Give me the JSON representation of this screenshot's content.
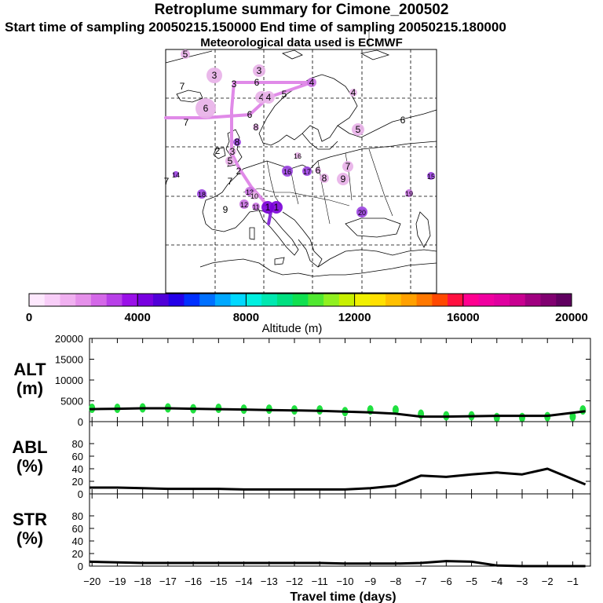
{
  "header": {
    "title": "Retroplume summary for Cimone_200502",
    "sampling": "Start time of sampling 20050215.150000     End time of sampling 20050215.180000",
    "met": "Meteorological data used is ECMWF"
  },
  "colorbar": {
    "ticks": [
      "0",
      "4000",
      "8000",
      "12000",
      "16000",
      "20000"
    ],
    "label": "Altitude  (m)",
    "colors": [
      "#fde8fd",
      "#f8cef8",
      "#f0b0f0",
      "#e590ea",
      "#d468e8",
      "#b840e8",
      "#9a10e8",
      "#7800e0",
      "#5000d8",
      "#2400e8",
      "#0030ff",
      "#0070ff",
      "#00a8ff",
      "#00d8ff",
      "#00f0e0",
      "#00e8b0",
      "#00e080",
      "#10e050",
      "#50e830",
      "#90f020",
      "#c8f000",
      "#f0f000",
      "#ffe000",
      "#ffc000",
      "#ffa000",
      "#ff7800",
      "#ff4800",
      "#ff1040",
      "#ff0090",
      "#f000a0",
      "#e000a0",
      "#c80090",
      "#a00080",
      "#800070",
      "#600060"
    ]
  },
  "map": {
    "labels": [
      {
        "t": "5",
        "x": 236,
        "y": 69,
        "c": "#e8b0e8",
        "r": 6
      },
      {
        "t": "3",
        "x": 273,
        "y": 96,
        "c": "#e8b0e8",
        "r": 10
      },
      {
        "t": "3",
        "x": 330,
        "y": 90,
        "c": "#e8b0e8",
        "r": 8
      },
      {
        "t": "7",
        "x": 232,
        "y": 110,
        "c": "#e8b0e8",
        "r": 0
      },
      {
        "t": "3",
        "x": 298,
        "y": 107,
        "c": "#e8b0e8",
        "r": 0
      },
      {
        "t": "6",
        "x": 327,
        "y": 105,
        "c": "#e8b0e8",
        "r": 0
      },
      {
        "t": "4",
        "x": 397,
        "y": 105,
        "c": "#c870e0",
        "r": 6
      },
      {
        "t": "4",
        "x": 450,
        "y": 118,
        "c": "#e8b0e8",
        "r": 5
      },
      {
        "t": "4",
        "x": 333,
        "y": 124,
        "c": "#e8b0e8",
        "r": 8
      },
      {
        "t": "4",
        "x": 342,
        "y": 124,
        "c": "#e8b0e8",
        "r": 8
      },
      {
        "t": "5",
        "x": 362,
        "y": 120,
        "c": "#e8b0e8",
        "r": 0
      },
      {
        "t": "6",
        "x": 262,
        "y": 138,
        "c": "#e8b0e8",
        "r": 13
      },
      {
        "t": "6",
        "x": 318,
        "y": 146,
        "c": "#e8b0e8",
        "r": 0
      },
      {
        "t": "7",
        "x": 237,
        "y": 156,
        "c": "#e8b0e8",
        "r": 0
      },
      {
        "t": "6",
        "x": 513,
        "y": 153,
        "c": "#e8b0e8",
        "r": 0
      },
      {
        "t": "5",
        "x": 456,
        "y": 165,
        "c": "#e8b0e8",
        "r": 8
      },
      {
        "t": "8",
        "x": 326,
        "y": 162,
        "c": "#e8b0e8",
        "r": 4
      },
      {
        "t": "8",
        "x": 302,
        "y": 181,
        "c": "#9a40e0",
        "r": 5
      },
      {
        "t": "2",
        "x": 277,
        "y": 192,
        "c": "#e8b0e8",
        "r": 0
      },
      {
        "t": "3",
        "x": 296,
        "y": 193,
        "c": "#e8b0e8",
        "r": 5
      },
      {
        "t": "5",
        "x": 293,
        "y": 205,
        "c": "#e8b0e8",
        "r": 6
      },
      {
        "t": "16",
        "x": 379,
        "y": 198,
        "c": "#e8b0e8",
        "r": 4
      },
      {
        "t": "7",
        "x": 443,
        "y": 212,
        "c": "#e8b0e8",
        "r": 7
      },
      {
        "t": "16",
        "x": 366,
        "y": 218,
        "c": "#9a40e0",
        "r": 7
      },
      {
        "t": "17",
        "x": 391,
        "y": 218,
        "c": "#9a40e0",
        "r": 6
      },
      {
        "t": "6",
        "x": 405,
        "y": 217,
        "c": "#e8b0e8",
        "r": 4
      },
      {
        "t": "2",
        "x": 304,
        "y": 218,
        "c": "#e8b0e8",
        "r": 0
      },
      {
        "t": "14",
        "x": 224,
        "y": 222,
        "c": "#9a40e0",
        "r": 4
      },
      {
        "t": "15",
        "x": 549,
        "y": 224,
        "c": "#9a40e0",
        "r": 5
      },
      {
        "t": "8",
        "x": 413,
        "y": 227,
        "c": "#e8b0e8",
        "r": 6
      },
      {
        "t": "9",
        "x": 437,
        "y": 228,
        "c": "#e8b0e8",
        "r": 8
      },
      {
        "t": "7",
        "x": 212,
        "y": 231,
        "c": "#e8b0e8",
        "r": 0
      },
      {
        "t": "7",
        "x": 293,
        "y": 231,
        "c": "#e8b0e8",
        "r": 0
      },
      {
        "t": "13",
        "x": 318,
        "y": 244,
        "c": "#c870e0",
        "r": 6
      },
      {
        "t": "19",
        "x": 521,
        "y": 246,
        "c": "#c870e0",
        "r": 5
      },
      {
        "t": "18",
        "x": 257,
        "y": 247,
        "c": "#9a40e0",
        "r": 6
      },
      {
        "t": "10",
        "x": 324,
        "y": 249,
        "c": "#e8b0e8",
        "r": 5
      },
      {
        "t": "12",
        "x": 311,
        "y": 260,
        "c": "#c870e0",
        "r": 6
      },
      {
        "t": "11",
        "x": 326,
        "y": 263,
        "c": "#c870e0",
        "r": 5
      },
      {
        "t": "1",
        "x": 341,
        "y": 264,
        "c": "#7a00d8",
        "r": 8
      },
      {
        "t": "1",
        "x": 352,
        "y": 264,
        "c": "#7a00d8",
        "r": 8
      },
      {
        "t": "20",
        "x": 461,
        "y": 270,
        "c": "#9a40e0",
        "r": 7
      },
      {
        "t": "9",
        "x": 287,
        "y": 267,
        "c": "#e8b0e8",
        "r": 0
      }
    ]
  },
  "chart_data": [
    {
      "type": "line",
      "panel": "ALT",
      "ylabel": "ALT\n(m)",
      "ylim": [
        0,
        20000
      ],
      "yticks": [
        "0",
        "5000",
        "10000",
        "15000",
        "20000"
      ],
      "x": [
        -20.1,
        -19,
        -18,
        -17,
        -16,
        -15,
        -14,
        -13,
        -12,
        -11,
        -10,
        -9,
        -8,
        -7,
        -6,
        -5,
        -4,
        -3,
        -2,
        -0.5
      ],
      "values": [
        3000,
        3100,
        3200,
        3200,
        3100,
        3000,
        2900,
        2800,
        2700,
        2600,
        2400,
        2200,
        1900,
        1200,
        1200,
        1300,
        1400,
        1400,
        1400,
        2500
      ],
      "markers": {
        "color": "#20e040",
        "x": [
          -20,
          -19,
          -18,
          -17,
          -16,
          -15,
          -14,
          -13,
          -12,
          -11,
          -10,
          -9,
          -8,
          -7,
          -6,
          -5,
          -4,
          -3,
          -2,
          -1,
          -0.6
        ],
        "y": [
          3200,
          3200,
          3300,
          3300,
          3100,
          3200,
          3000,
          3000,
          2800,
          2800,
          2400,
          2800,
          2800,
          1800,
          1400,
          1400,
          1000,
          1000,
          1200,
          1200,
          2800
        ]
      }
    },
    {
      "type": "line",
      "panel": "ABL",
      "ylabel": "ABL\n(%)",
      "ylim": [
        0,
        100
      ],
      "yticks": [
        "0",
        "20",
        "40",
        "60",
        "80"
      ],
      "x": [
        -20.1,
        -19,
        -18,
        -17,
        -16,
        -15,
        -14,
        -13,
        -12,
        -11,
        -10,
        -9,
        -8,
        -7,
        -6,
        -5,
        -4,
        -3,
        -2,
        -0.5
      ],
      "values": [
        10,
        10,
        9,
        8,
        8,
        8,
        7,
        7,
        7,
        7,
        7,
        9,
        13,
        29,
        27,
        31,
        34,
        31,
        40,
        15
      ]
    },
    {
      "type": "line",
      "panel": "STR",
      "ylabel": "STR\n(%)",
      "ylim": [
        0,
        100
      ],
      "yticks": [
        "0",
        "20",
        "40",
        "60",
        "80"
      ],
      "x": [
        -20.1,
        -19,
        -18,
        -17,
        -16,
        -15,
        -14,
        -13,
        -12,
        -11,
        -10,
        -9,
        -8,
        -7,
        -6,
        -5,
        -4,
        -3,
        -2,
        -0.5
      ],
      "values": [
        7,
        6,
        5,
        5,
        5,
        5,
        5,
        5,
        5,
        5,
        4,
        4,
        4,
        5,
        8,
        7,
        1,
        0,
        0,
        0
      ]
    },
    {
      "type": "axis",
      "xlabel": "Travel time (days)",
      "xticks": [
        "−20",
        "−19",
        "−18",
        "−17",
        "−16",
        "−15",
        "−14",
        "−13",
        "−12",
        "−11",
        "−10",
        "−9",
        "−8",
        "−7",
        "−6",
        "−5",
        "−4",
        "−3",
        "−2",
        "−1"
      ],
      "xlim": [
        -20.1,
        -0.3
      ]
    }
  ]
}
